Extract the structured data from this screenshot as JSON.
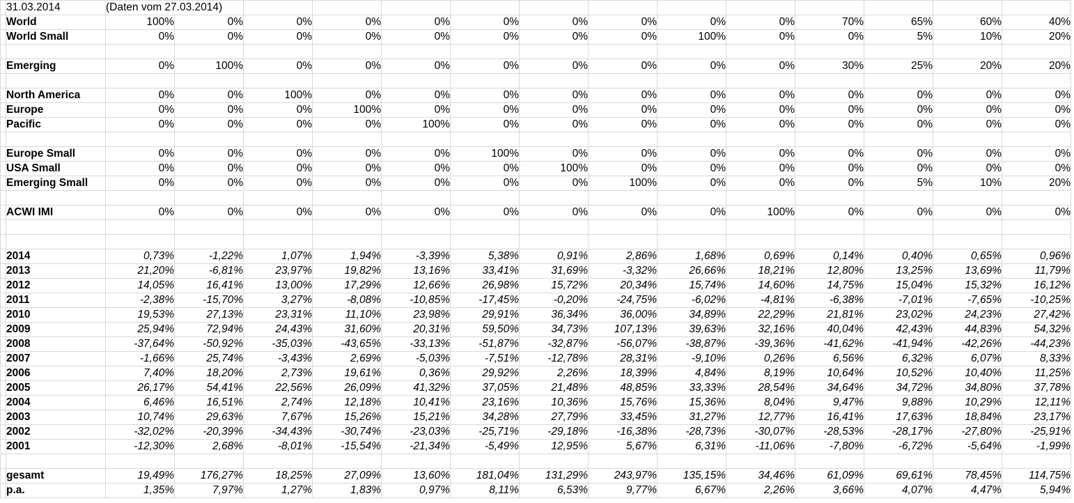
{
  "sheet": {
    "date": "31.03.2014",
    "note": "(Daten vom 27.03.2014)",
    "num_data_columns": 14,
    "colors": {
      "highlight": "#ffff00",
      "grid": "#d8d8d8",
      "box_border": "#000000",
      "text": "#000000"
    },
    "rows": [
      {
        "type": "date"
      },
      {
        "type": "alloc",
        "label": "World",
        "values": [
          "100%",
          "0%",
          "0%",
          "0%",
          "0%",
          "0%",
          "0%",
          "0%",
          "0%",
          "0%",
          "70%",
          "65%",
          "60%",
          "40%"
        ]
      },
      {
        "type": "alloc",
        "label": "World Small",
        "values": [
          "0%",
          "0%",
          "0%",
          "0%",
          "0%",
          "0%",
          "0%",
          "0%",
          "100%",
          "0%",
          "0%",
          "5%",
          "10%",
          "20%"
        ]
      },
      {
        "type": "blank"
      },
      {
        "type": "alloc",
        "label": "Emerging",
        "values": [
          "0%",
          "100%",
          "0%",
          "0%",
          "0%",
          "0%",
          "0%",
          "0%",
          "0%",
          "0%",
          "30%",
          "25%",
          "20%",
          "20%"
        ]
      },
      {
        "type": "blank"
      },
      {
        "type": "alloc",
        "label": "North America",
        "values": [
          "0%",
          "0%",
          "100%",
          "0%",
          "0%",
          "0%",
          "0%",
          "0%",
          "0%",
          "0%",
          "0%",
          "0%",
          "0%",
          "0%"
        ]
      },
      {
        "type": "alloc",
        "label": "Europe",
        "values": [
          "0%",
          "0%",
          "0%",
          "100%",
          "0%",
          "0%",
          "0%",
          "0%",
          "0%",
          "0%",
          "0%",
          "0%",
          "0%",
          "0%"
        ]
      },
      {
        "type": "alloc",
        "label": "Pacific",
        "values": [
          "0%",
          "0%",
          "0%",
          "0%",
          "100%",
          "0%",
          "0%",
          "0%",
          "0%",
          "0%",
          "0%",
          "0%",
          "0%",
          "0%"
        ]
      },
      {
        "type": "blank"
      },
      {
        "type": "alloc",
        "label": "Europe Small",
        "values": [
          "0%",
          "0%",
          "0%",
          "0%",
          "0%",
          "100%",
          "0%",
          "0%",
          "0%",
          "0%",
          "0%",
          "0%",
          "0%",
          "0%"
        ]
      },
      {
        "type": "alloc",
        "label": "USA Small",
        "values": [
          "0%",
          "0%",
          "0%",
          "0%",
          "0%",
          "0%",
          "100%",
          "0%",
          "0%",
          "0%",
          "0%",
          "0%",
          "0%",
          "0%"
        ]
      },
      {
        "type": "alloc",
        "label": "Emerging Small",
        "values": [
          "0%",
          "0%",
          "0%",
          "0%",
          "0%",
          "0%",
          "0%",
          "100%",
          "0%",
          "0%",
          "0%",
          "5%",
          "10%",
          "20%"
        ]
      },
      {
        "type": "blank"
      },
      {
        "type": "alloc",
        "label": "ACWI IMI",
        "values": [
          "0%",
          "0%",
          "0%",
          "0%",
          "0%",
          "0%",
          "0%",
          "0%",
          "0%",
          "100%",
          "0%",
          "0%",
          "0%",
          "0%"
        ]
      },
      {
        "type": "blank"
      },
      {
        "type": "blank"
      },
      {
        "type": "year",
        "label": "2014",
        "values": [
          "0,73%",
          "-1,22%",
          "1,07%",
          "1,94%",
          "-3,39%",
          "5,38%",
          "0,91%",
          "2,86%",
          "1,68%",
          "0,69%",
          "0,14%",
          "0,40%",
          "0,65%",
          "0,96%"
        ]
      },
      {
        "type": "year",
        "label": "2013",
        "values": [
          "21,20%",
          "-6,81%",
          "23,97%",
          "19,82%",
          "13,16%",
          "33,41%",
          "31,69%",
          "-3,32%",
          "26,66%",
          "18,21%",
          "12,80%",
          "13,25%",
          "13,69%",
          "11,79%"
        ]
      },
      {
        "type": "year",
        "label": "2012",
        "values": [
          "14,05%",
          "16,41%",
          "13,00%",
          "17,29%",
          "12,66%",
          "26,98%",
          "15,72%",
          "20,34%",
          "15,74%",
          "14,60%",
          "14,75%",
          "15,04%",
          "15,32%",
          "16,12%"
        ]
      },
      {
        "type": "year",
        "label": "2011",
        "values": [
          "-2,38%",
          "-15,70%",
          "3,27%",
          "-8,08%",
          "-10,85%",
          "-17,45%",
          "-0,20%",
          "-24,75%",
          "-6,02%",
          "-4,81%",
          "-6,38%",
          "-7,01%",
          "-7,65%",
          "-10,25%"
        ]
      },
      {
        "type": "year",
        "label": "2010",
        "values": [
          "19,53%",
          "27,13%",
          "23,31%",
          "11,10%",
          "23,98%",
          "29,91%",
          "36,34%",
          "36,00%",
          "34,89%",
          "22,29%",
          "21,81%",
          "23,02%",
          "24,23%",
          "27,42%"
        ]
      },
      {
        "type": "year",
        "label": "2009",
        "values": [
          "25,94%",
          "72,94%",
          "24,43%",
          "31,60%",
          "20,31%",
          "59,50%",
          "34,73%",
          "107,13%",
          "39,63%",
          "32,16%",
          "40,04%",
          "42,43%",
          "44,83%",
          "54,32%"
        ]
      },
      {
        "type": "year",
        "label": "2008",
        "values": [
          "-37,64%",
          "-50,92%",
          "-35,03%",
          "-43,65%",
          "-33,13%",
          "-51,87%",
          "-32,87%",
          "-56,07%",
          "-38,87%",
          "-39,36%",
          "-41,62%",
          "-41,94%",
          "-42,26%",
          "-44,23%"
        ]
      },
      {
        "type": "year",
        "label": "2007",
        "values": [
          "-1,66%",
          "25,74%",
          "-3,43%",
          "2,69%",
          "-5,03%",
          "-7,51%",
          "-12,78%",
          "28,31%",
          "-9,10%",
          "0,26%",
          "6,56%",
          "6,32%",
          "6,07%",
          "8,33%"
        ]
      },
      {
        "type": "year",
        "label": "2006",
        "values": [
          "7,40%",
          "18,20%",
          "2,73%",
          "19,61%",
          "0,36%",
          "29,92%",
          "2,26%",
          "18,39%",
          "4,84%",
          "8,19%",
          "10,64%",
          "10,52%",
          "10,40%",
          "11,25%"
        ]
      },
      {
        "type": "year",
        "label": "2005",
        "values": [
          "26,17%",
          "54,41%",
          "22,56%",
          "26,09%",
          "41,32%",
          "37,05%",
          "21,48%",
          "48,85%",
          "33,33%",
          "28,54%",
          "34,64%",
          "34,72%",
          "34,80%",
          "37,78%"
        ]
      },
      {
        "type": "year",
        "label": "2004",
        "values": [
          "6,46%",
          "16,51%",
          "2,74%",
          "12,18%",
          "10,41%",
          "23,16%",
          "10,36%",
          "15,76%",
          "15,36%",
          "8,04%",
          "9,47%",
          "9,88%",
          "10,29%",
          "12,11%"
        ]
      },
      {
        "type": "year",
        "label": "2003",
        "values": [
          "10,74%",
          "29,63%",
          "7,67%",
          "15,26%",
          "15,21%",
          "34,28%",
          "27,79%",
          "33,45%",
          "31,27%",
          "12,77%",
          "16,41%",
          "17,63%",
          "18,84%",
          "23,17%"
        ]
      },
      {
        "type": "year",
        "label": "2002",
        "values": [
          "-32,02%",
          "-20,39%",
          "-34,43%",
          "-30,74%",
          "-23,03%",
          "-25,71%",
          "-29,18%",
          "-16,38%",
          "-28,73%",
          "-30,07%",
          "-28,53%",
          "-28,17%",
          "-27,80%",
          "-25,91%"
        ]
      },
      {
        "type": "year",
        "label": "2001",
        "values": [
          "-12,30%",
          "2,68%",
          "-8,01%",
          "-15,54%",
          "-21,34%",
          "-5,49%",
          "12,95%",
          "5,67%",
          "6,31%",
          "-11,06%",
          "-7,80%",
          "-6,72%",
          "-5,64%",
          "-1,99%"
        ]
      },
      {
        "type": "blank"
      },
      {
        "type": "total",
        "label": "gesamt",
        "values": [
          "19,49%",
          "176,27%",
          "18,25%",
          "27,09%",
          "13,60%",
          "181,04%",
          "131,29%",
          "243,97%",
          "135,15%",
          "34,46%",
          "61,09%",
          "69,61%",
          "78,45%",
          "114,75%"
        ]
      },
      {
        "type": "total",
        "label": "p.a.",
        "values": [
          "1,35%",
          "7,97%",
          "1,27%",
          "1,83%",
          "0,97%",
          "8,11%",
          "6,53%",
          "9,77%",
          "6,67%",
          "2,26%",
          "3,66%",
          "4,07%",
          "4,47%",
          "5,94%"
        ]
      }
    ]
  }
}
